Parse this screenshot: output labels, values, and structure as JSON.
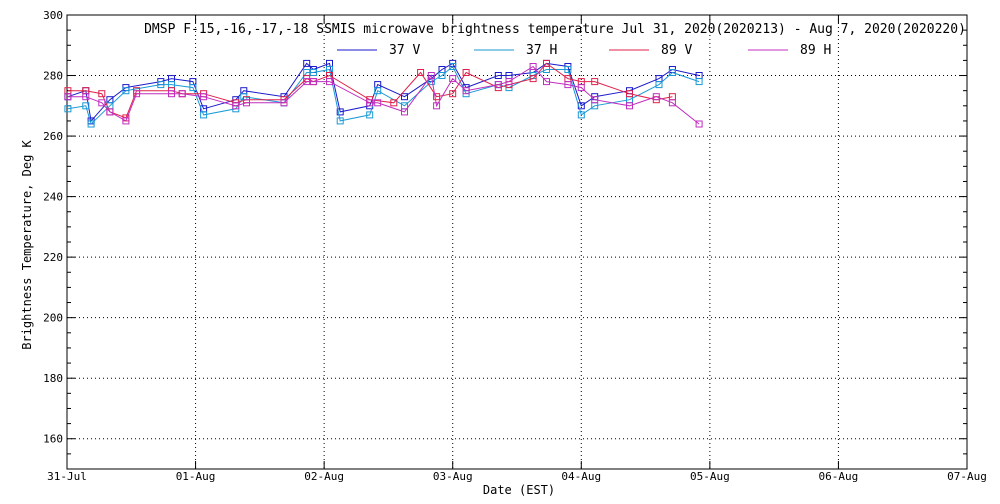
{
  "chart_data": {
    "type": "line",
    "title": "DMSP F-15,-16,-17,-18 SSMIS microwave brightness temperature Jul 31, 2020(2020213) - Aug  7, 2020(2020220)",
    "xlabel": "Date (EST)",
    "ylabel": "Brightness Temperature, Deg K",
    "ylim": [
      150,
      300
    ],
    "xlim": [
      "2020-07-31",
      "2020-08-07"
    ],
    "yticks": [
      160,
      180,
      200,
      220,
      240,
      260,
      280,
      300
    ],
    "xtick_labels": [
      "31-Jul",
      "01-Aug",
      "02-Aug",
      "03-Aug",
      "04-Aug",
      "05-Aug",
      "06-Aug",
      "07-Aug"
    ],
    "grid": true,
    "legend_position": "top",
    "series": [
      {
        "name": "37 V",
        "color": "#1a1acc",
        "x": [
          "2020-07-31 00:10",
          "2020-07-31 03:30",
          "2020-07-31 04:30",
          "2020-07-31 08:00",
          "2020-07-31 11:00",
          "2020-07-31 17:30",
          "2020-07-31 19:30",
          "2020-07-31 23:30",
          "2020-08-01 01:30",
          "2020-08-01 07:30",
          "2020-08-01 09:00",
          "2020-08-01 16:30",
          "2020-08-01 20:45",
          "2020-08-01 22:00",
          "2020-08-02 01:00",
          "2020-08-02 03:00",
          "2020-08-02 08:30",
          "2020-08-02 10:00",
          "2020-08-02 15:00",
          "2020-08-02 20:00",
          "2020-08-02 22:00",
          "2020-08-03 00:00",
          "2020-08-03 02:30",
          "2020-08-03 08:30",
          "2020-08-03 10:30",
          "2020-08-03 15:00",
          "2020-08-03 17:30",
          "2020-08-03 21:30",
          "2020-08-04 00:00",
          "2020-08-04 02:30",
          "2020-08-04 09:00",
          "2020-08-04 14:30",
          "2020-08-04 17:00",
          "2020-08-04 22:00"
        ],
        "values": [
          273,
          275,
          265,
          272,
          276,
          278,
          279,
          278,
          269,
          272,
          275,
          273,
          284,
          282,
          284,
          268,
          270,
          277,
          273,
          279,
          282,
          284,
          276,
          280,
          280,
          281,
          284,
          283,
          270,
          273,
          275,
          279,
          282,
          280
        ]
      },
      {
        "name": "37 H",
        "color": "#1a9ad6",
        "x": [
          "2020-07-31 00:10",
          "2020-07-31 03:30",
          "2020-07-31 04:30",
          "2020-07-31 08:00",
          "2020-07-31 11:00",
          "2020-07-31 17:30",
          "2020-07-31 19:30",
          "2020-07-31 23:30",
          "2020-08-01 01:30",
          "2020-08-01 07:30",
          "2020-08-01 09:00",
          "2020-08-01 16:30",
          "2020-08-01 20:45",
          "2020-08-01 22:00",
          "2020-08-02 01:00",
          "2020-08-02 03:00",
          "2020-08-02 08:30",
          "2020-08-02 10:00",
          "2020-08-02 15:00",
          "2020-08-02 20:00",
          "2020-08-02 22:00",
          "2020-08-03 00:00",
          "2020-08-03 02:30",
          "2020-08-03 08:30",
          "2020-08-03 10:30",
          "2020-08-03 15:00",
          "2020-08-03 17:30",
          "2020-08-03 21:30",
          "2020-08-04 00:00",
          "2020-08-04 02:30",
          "2020-08-04 09:00",
          "2020-08-04 14:30",
          "2020-08-04 17:00",
          "2020-08-04 22:00"
        ],
        "values": [
          269,
          270,
          264,
          270,
          275,
          277,
          277,
          276,
          267,
          269,
          273,
          271,
          281,
          281,
          282,
          265,
          267,
          275,
          270,
          278,
          280,
          283,
          274,
          277,
          276,
          280,
          282,
          282,
          267,
          270,
          272,
          277,
          281,
          278
        ]
      },
      {
        "name": "89 V",
        "color": "#e0204a",
        "x": [
          "2020-07-31 00:10",
          "2020-07-31 03:30",
          "2020-07-31 06:30",
          "2020-07-31 08:00",
          "2020-07-31 11:00",
          "2020-07-31 13:00",
          "2020-07-31 19:30",
          "2020-07-31 21:30",
          "2020-08-01 01:30",
          "2020-08-01 07:30",
          "2020-08-01 09:30",
          "2020-08-01 16:30",
          "2020-08-01 20:45",
          "2020-08-01 22:00",
          "2020-08-02 01:00",
          "2020-08-02 08:30",
          "2020-08-02 13:00",
          "2020-08-02 18:00",
          "2020-08-02 21:00",
          "2020-08-03 00:00",
          "2020-08-03 02:30",
          "2020-08-03 08:30",
          "2020-08-03 10:30",
          "2020-08-03 15:00",
          "2020-08-03 17:30",
          "2020-08-03 21:30",
          "2020-08-04 00:00",
          "2020-08-04 02:30",
          "2020-08-04 09:00",
          "2020-08-04 14:00",
          "2020-08-04 17:00"
        ],
        "values": [
          275,
          275,
          274,
          268,
          266,
          275,
          275,
          274,
          274,
          271,
          272,
          272,
          279,
          278,
          280,
          272,
          271,
          281,
          273,
          274,
          281,
          276,
          277,
          279,
          284,
          279,
          278,
          278,
          274,
          272,
          273
        ]
      },
      {
        "name": "89 H",
        "color": "#c02ec0",
        "x": [
          "2020-07-31 00:10",
          "2020-07-31 03:30",
          "2020-07-31 06:30",
          "2020-07-31 08:00",
          "2020-07-31 11:00",
          "2020-07-31 13:00",
          "2020-07-31 19:30",
          "2020-07-31 21:30",
          "2020-08-01 01:30",
          "2020-08-01 07:30",
          "2020-08-01 09:30",
          "2020-08-01 16:30",
          "2020-08-01 20:45",
          "2020-08-01 22:00",
          "2020-08-02 01:00",
          "2020-08-02 08:30",
          "2020-08-02 10:00",
          "2020-08-02 15:00",
          "2020-08-02 20:00",
          "2020-08-02 21:00",
          "2020-08-03 00:00",
          "2020-08-03 02:30",
          "2020-08-03 08:30",
          "2020-08-03 10:30",
          "2020-08-03 15:00",
          "2020-08-03 17:30",
          "2020-08-03 21:30",
          "2020-08-04 00:00",
          "2020-08-04 02:30",
          "2020-08-04 09:00",
          "2020-08-04 14:00",
          "2020-08-04 17:00",
          "2020-08-04 22:00"
        ],
        "values": [
          273,
          273,
          271,
          268,
          265,
          274,
          274,
          274,
          273,
          270,
          271,
          271,
          278,
          278,
          278,
          271,
          271,
          268,
          280,
          270,
          279,
          275,
          277,
          278,
          283,
          278,
          277,
          276,
          272,
          270,
          273,
          271,
          264
        ]
      }
    ]
  }
}
